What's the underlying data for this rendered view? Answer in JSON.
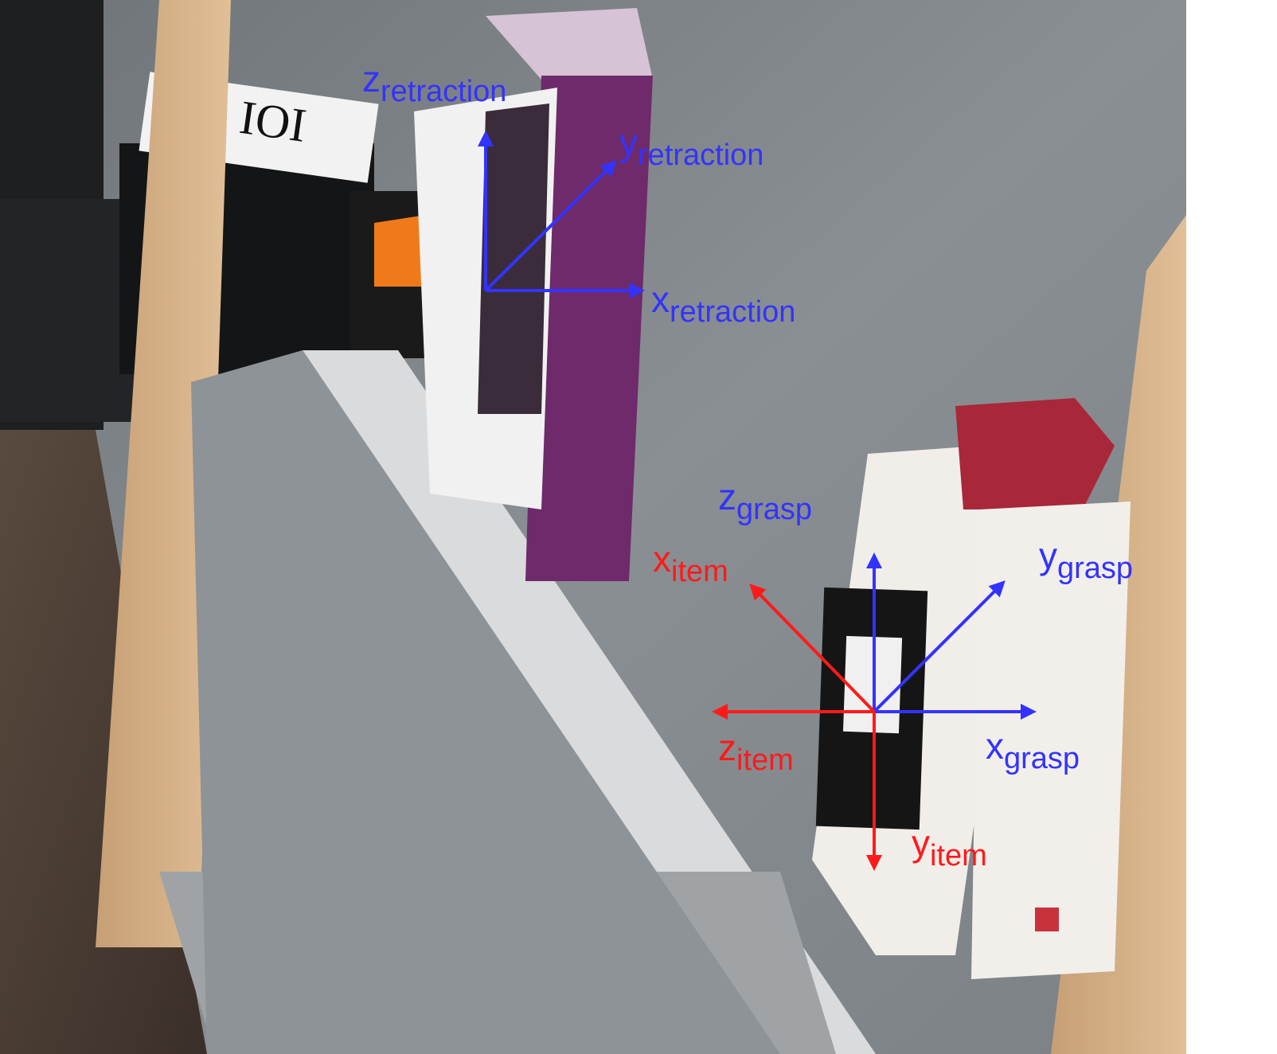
{
  "colors": {
    "retraction_frame": "#3333ff",
    "grasp_frame": "#3333ff",
    "item_frame": "#ff1a1a"
  },
  "frames": {
    "retraction": {
      "z": {
        "base": "z",
        "sub": "retraction"
      },
      "y": {
        "base": "y",
        "sub": "retraction"
      },
      "x": {
        "base": "x",
        "sub": "retraction"
      }
    },
    "grasp": {
      "z": {
        "base": "z",
        "sub": "grasp"
      },
      "y": {
        "base": "y",
        "sub": "grasp"
      },
      "x": {
        "base": "x",
        "sub": "grasp"
      }
    },
    "item": {
      "x": {
        "base": "x",
        "sub": "item"
      },
      "z": {
        "base": "z",
        "sub": "item"
      },
      "y": {
        "base": "y",
        "sub": "item"
      }
    }
  }
}
